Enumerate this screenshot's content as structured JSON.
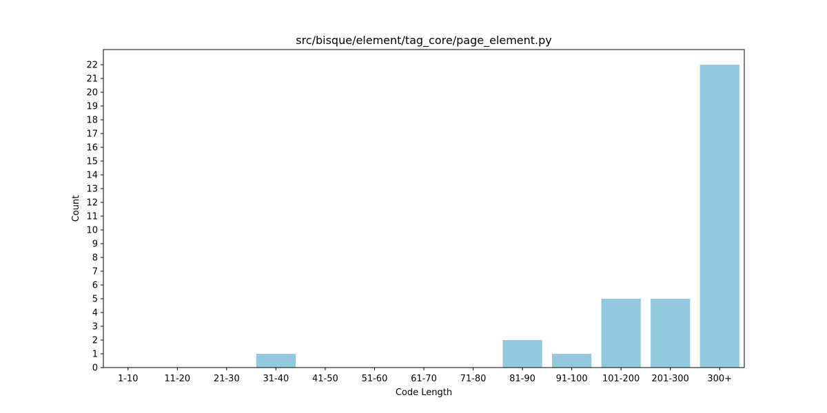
{
  "chart_data": {
    "type": "bar",
    "title": "src/bisque/element/tag_core/page_element.py",
    "xlabel": "Code Length",
    "ylabel": "Count",
    "categories": [
      "1-10",
      "11-20",
      "21-30",
      "31-40",
      "41-50",
      "51-60",
      "61-70",
      "71-80",
      "81-90",
      "91-100",
      "101-200",
      "201-300",
      "300+"
    ],
    "values": [
      0,
      0,
      0,
      1,
      0,
      0,
      0,
      0,
      2,
      1,
      5,
      5,
      22
    ],
    "ylim": [
      0,
      23.1
    ],
    "yticks": [
      0,
      1,
      2,
      3,
      4,
      5,
      6,
      7,
      8,
      9,
      10,
      11,
      12,
      13,
      14,
      15,
      16,
      17,
      18,
      19,
      20,
      21,
      22
    ],
    "bar_color": "#92c9de",
    "grid": false,
    "legend": "none"
  }
}
